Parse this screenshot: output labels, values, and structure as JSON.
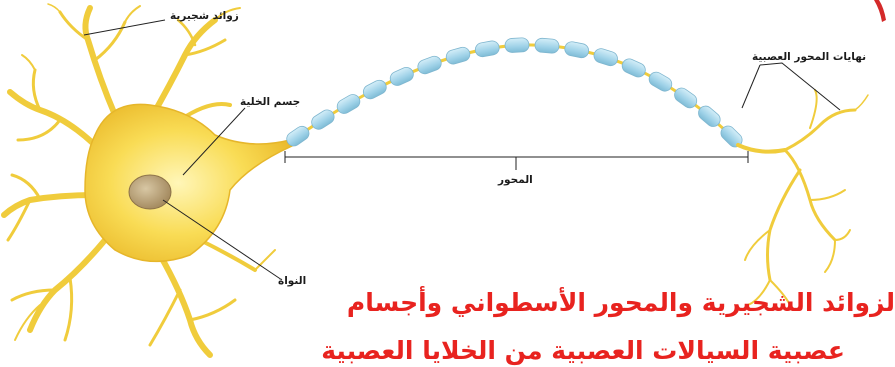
{
  "labels": {
    "dendrites": "زوائد شجيرية",
    "cell_body": "جسم الخلية",
    "axon_terminals": "نهايات المحور العصبية",
    "axon": "المحور",
    "nucleus": "النواة"
  },
  "caption": {
    "line1": "لزوائد الشجيرية والمحور الأسطواني وأجسام",
    "line2": "عصبية السيالات العصبية من الخلايا العصبية"
  },
  "colors": {
    "neuron_fill": "#f7d84a",
    "neuron_light": "#fff3a8",
    "myelin": "#a9d9ec",
    "nucleus": "#b9a27a",
    "caption": "#e8231f"
  }
}
